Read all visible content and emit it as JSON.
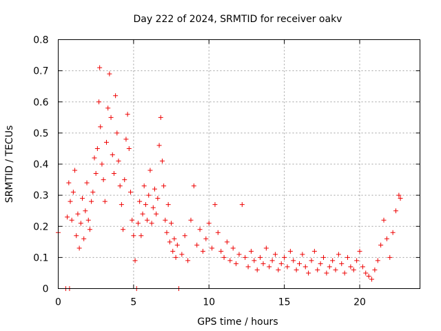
{
  "chart_data": {
    "type": "scatter",
    "title": "Day 222 of 2024, SRMTID for receiver oakv",
    "xlabel": "GPS time / hours",
    "ylabel": "SRMTID / TECUs",
    "xlim": [
      0,
      24
    ],
    "ylim": [
      0,
      0.8
    ],
    "xticks": [
      0,
      5,
      10,
      15,
      20
    ],
    "xtick_labels": [
      "0",
      "5",
      "10",
      "15",
      "20"
    ],
    "yticks": [
      0,
      0.1,
      0.2,
      0.3,
      0.4,
      0.5,
      0.6,
      0.7,
      0.8
    ],
    "ytick_labels": [
      "0",
      "0.1",
      "0.2",
      "0.3",
      "0.4",
      "0.5",
      "0.6",
      "0.7",
      "0.8"
    ],
    "grid": true,
    "marker": "plus",
    "color": "#ee0000",
    "series": [
      {
        "name": "SRMTID",
        "x": [
          0.0,
          0.5,
          0.6,
          0.7,
          0.75,
          0.8,
          0.9,
          1.0,
          1.1,
          1.2,
          1.3,
          1.4,
          1.5,
          1.6,
          1.7,
          1.8,
          1.9,
          2.0,
          2.1,
          2.2,
          2.3,
          2.4,
          2.5,
          2.6,
          2.7,
          2.75,
          2.8,
          2.9,
          3.0,
          3.1,
          3.2,
          3.3,
          3.4,
          3.5,
          3.6,
          3.7,
          3.8,
          3.9,
          4.0,
          4.1,
          4.2,
          4.3,
          4.4,
          4.5,
          4.6,
          4.7,
          4.8,
          4.9,
          5.0,
          5.1,
          5.2,
          5.3,
          5.4,
          5.5,
          5.6,
          5.7,
          5.8,
          5.9,
          6.0,
          6.1,
          6.2,
          6.3,
          6.4,
          6.5,
          6.6,
          6.7,
          6.8,
          6.9,
          7.0,
          7.1,
          7.2,
          7.3,
          7.4,
          7.5,
          7.6,
          7.7,
          7.8,
          7.9,
          8.0,
          8.2,
          8.4,
          8.6,
          8.8,
          9.0,
          9.2,
          9.4,
          9.6,
          9.8,
          10.0,
          10.2,
          10.4,
          10.6,
          10.8,
          11.0,
          11.2,
          11.4,
          11.6,
          11.8,
          12.0,
          12.2,
          12.4,
          12.6,
          12.8,
          13.0,
          13.2,
          13.4,
          13.6,
          13.8,
          14.0,
          14.2,
          14.4,
          14.6,
          14.8,
          15.0,
          15.2,
          15.4,
          15.6,
          15.8,
          16.0,
          16.2,
          16.4,
          16.6,
          16.8,
          17.0,
          17.2,
          17.4,
          17.6,
          17.8,
          18.0,
          18.2,
          18.4,
          18.6,
          18.8,
          19.0,
          19.2,
          19.4,
          19.6,
          19.8,
          20.0,
          20.2,
          20.4,
          20.6,
          20.8,
          21.0,
          21.2,
          21.4,
          21.6,
          21.8,
          22.0,
          22.2,
          22.4,
          22.6,
          22.7
        ],
        "y": [
          0.18,
          0.0,
          0.23,
          0.34,
          0.0,
          0.28,
          0.22,
          0.31,
          0.38,
          0.17,
          0.24,
          0.13,
          0.21,
          0.29,
          0.16,
          0.25,
          0.34,
          0.22,
          0.19,
          0.28,
          0.31,
          0.42,
          0.37,
          0.45,
          0.6,
          0.71,
          0.52,
          0.4,
          0.35,
          0.28,
          0.47,
          0.58,
          0.69,
          0.55,
          0.43,
          0.37,
          0.62,
          0.5,
          0.41,
          0.33,
          0.27,
          0.19,
          0.35,
          0.48,
          0.56,
          0.45,
          0.31,
          0.22,
          0.17,
          0.09,
          0.0,
          0.21,
          0.28,
          0.17,
          0.24,
          0.33,
          0.27,
          0.22,
          0.3,
          0.38,
          0.21,
          0.26,
          0.32,
          0.24,
          0.29,
          0.46,
          0.55,
          0.41,
          0.33,
          0.22,
          0.18,
          0.27,
          0.15,
          0.21,
          0.12,
          0.16,
          0.1,
          0.14,
          0.0,
          0.11,
          0.17,
          0.09,
          0.22,
          0.33,
          0.14,
          0.19,
          0.12,
          0.16,
          0.21,
          0.13,
          0.27,
          0.18,
          0.12,
          0.1,
          0.15,
          0.09,
          0.13,
          0.08,
          0.11,
          0.27,
          0.1,
          0.07,
          0.12,
          0.09,
          0.06,
          0.1,
          0.08,
          0.13,
          0.07,
          0.09,
          0.11,
          0.06,
          0.08,
          0.1,
          0.07,
          0.12,
          0.09,
          0.06,
          0.08,
          0.11,
          0.07,
          0.05,
          0.09,
          0.12,
          0.06,
          0.08,
          0.1,
          0.05,
          0.07,
          0.09,
          0.06,
          0.11,
          0.08,
          0.05,
          0.1,
          0.07,
          0.06,
          0.09,
          0.12,
          0.07,
          0.05,
          0.04,
          0.03,
          0.06,
          0.09,
          0.14,
          0.22,
          0.16,
          0.1,
          0.18,
          0.25,
          0.3,
          0.29
        ]
      }
    ]
  }
}
